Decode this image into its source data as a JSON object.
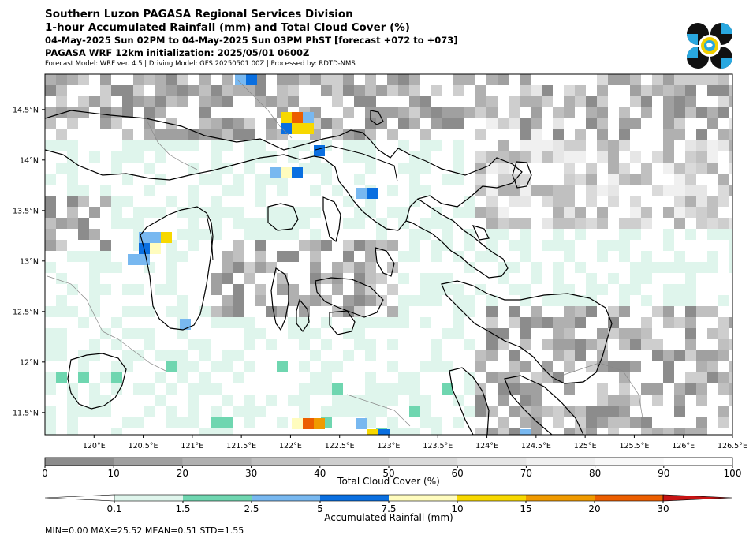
{
  "title": {
    "line1": "Southern Luzon PAGASA Regional Services Division",
    "line2": "1-hour Accumulated Rainfall (mm) and Total Cloud Cover (%)",
    "line3": "04-May-2025 Sun 02PM to 04-May-2025 Sun 03PM PhST [forecast +072 to +073]",
    "line4": "PAGASA WRF 12km initialization: 2025/05/01 0600Z",
    "line5": "Forecast Model: WRF ver. 4.5 | Driving Model: GFS 20250501 00Z | Processed by: RDTD-NMS"
  },
  "map": {
    "lon_ticks": [
      "120°E",
      "120.5°E",
      "121°E",
      "121.5°E",
      "122°E",
      "122.5°E",
      "123°E",
      "123.5°E",
      "124°E",
      "124.5°E",
      "125°E",
      "125.5°E",
      "126°E",
      "126.5°E"
    ],
    "lat_ticks": [
      "14.5°N",
      "14°N",
      "13.5°N",
      "13°N",
      "12.5°N",
      "12°N",
      "11.5°N"
    ]
  },
  "cloud_colorbar": {
    "label": "Total Cloud Cover (%)",
    "ticks": [
      "0",
      "10",
      "20",
      "30",
      "40",
      "50",
      "60",
      "70",
      "80",
      "90",
      "100"
    ],
    "colors": [
      "#8c8c8c",
      "#a0a0a0",
      "#b0b0b0",
      "#c0c0c0",
      "#cecece",
      "#dadada",
      "#e6e6e6",
      "#f0f0f0",
      "#f8f8f8",
      "#ffffff"
    ]
  },
  "rain_colorbar": {
    "label": "Accumulated Rainfall (mm)",
    "ticks": [
      "0.1",
      "1.5",
      "2.5",
      "5",
      "7.5",
      "10",
      "15",
      "20",
      "30"
    ],
    "colors": [
      "#ffffff",
      "#dff5ec",
      "#6fd6b0",
      "#78b8f0",
      "#0a6fe0",
      "#fffcbe",
      "#f7d800",
      "#f09a00",
      "#ec5e00",
      "#c81414"
    ]
  },
  "stats": "MIN=0.00   MAX=25.52   MEAN=0.51   STD=1.55",
  "logo": {
    "name": "pagasa-logo",
    "colors": [
      "#111111",
      "#29a8e0",
      "#f2d000"
    ]
  }
}
